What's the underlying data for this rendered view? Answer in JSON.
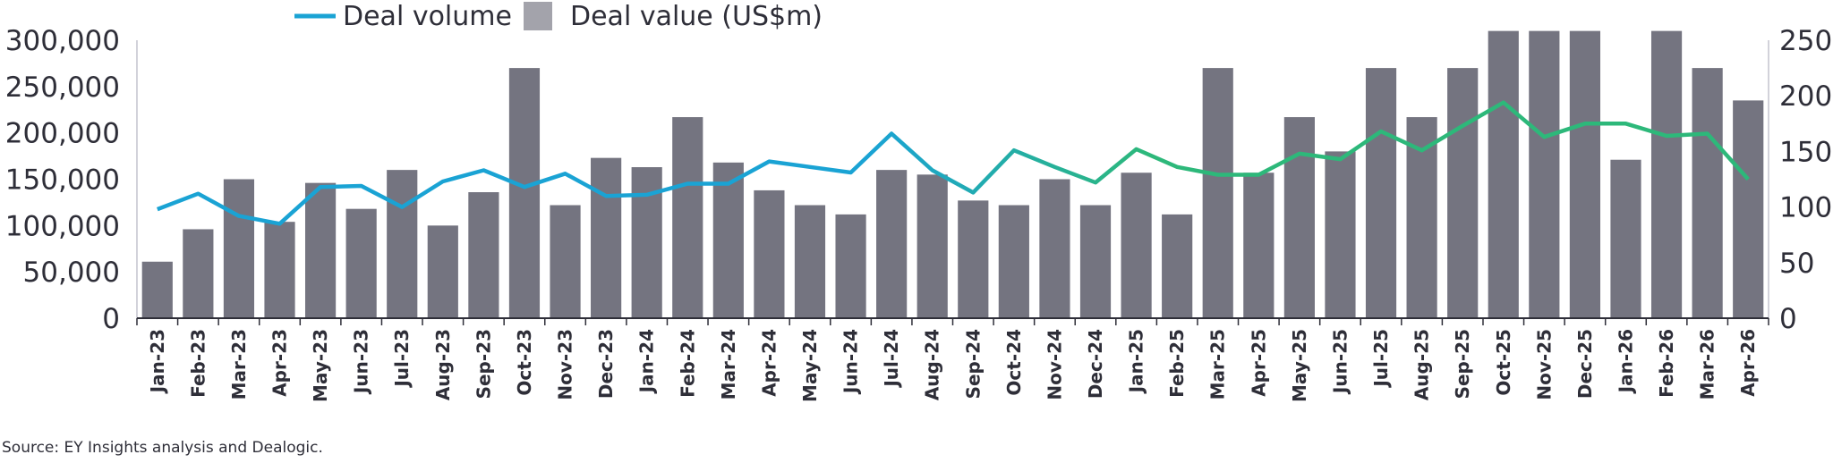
{
  "chart_data": {
    "type": "bar",
    "categories": [
      "Jan-23",
      "Feb-23",
      "Mar-23",
      "Apr-23",
      "May-23",
      "Jun-23",
      "Jul-23",
      "Aug-23",
      "Sep-23",
      "Oct-23",
      "Nov-23",
      "Dec-23",
      "Jan-24",
      "Feb-24",
      "Mar-24",
      "Apr-24",
      "May-24",
      "Jun-24",
      "Jul-24",
      "Aug-24",
      "Sep-24",
      "Oct-24",
      "Nov-24",
      "Dec-24",
      "Jan-25",
      "Feb-25",
      "Mar-25",
      "Apr-25",
      "May-25",
      "Jun-25",
      "Jul-25",
      "Aug-25",
      "Sep-25",
      "Oct-25",
      "Nov-25",
      "Dec-25",
      "Jan-26",
      "Feb-26",
      "Mar-26",
      "Apr-26"
    ],
    "series": [
      {
        "name": "Deal value (US$m)",
        "type": "bar",
        "axis": "left",
        "color": "#747480",
        "values": [
          61000,
          96000,
          150000,
          104000,
          146000,
          118000,
          160000,
          100000,
          136000,
          270000,
          122000,
          173000,
          163000,
          217000,
          168000,
          138000,
          122000,
          112000,
          160000,
          155000,
          127000,
          122000,
          150000,
          122000,
          157000,
          112000,
          270000,
          157000,
          217000,
          180000,
          270000,
          217000,
          270000,
          310000,
          310000,
          310000,
          171000,
          310000,
          270000,
          235000
        ]
      },
      {
        "name": "Deal volume",
        "type": "line",
        "axis": "right",
        "colors": [
          "#1aa3d4",
          "#2db87a"
        ],
        "values": [
          98,
          112,
          92,
          85,
          118,
          119,
          100,
          123,
          133,
          118,
          130,
          110,
          111,
          121,
          121,
          141,
          136,
          131,
          166,
          133,
          113,
          151,
          136,
          122,
          152,
          136,
          129,
          129,
          148,
          143,
          168,
          151,
          173,
          194,
          163,
          175,
          175,
          164,
          166,
          125
        ]
      }
    ],
    "yticks_left": [
      "0",
      "50,000",
      "100,000",
      "150,000",
      "200,000",
      "250,000",
      "300,000"
    ],
    "yticks_right": [
      "0",
      "50",
      "100",
      "150",
      "200",
      "250"
    ],
    "ylim_left": [
      0,
      300000
    ],
    "ylim_right": [
      0,
      250
    ],
    "legend": {
      "position": "top",
      "items": [
        "Deal volume",
        "Deal value (US$m)"
      ]
    },
    "grid": false
  },
  "source": "Source: EY Insights analysis and Dealogic."
}
